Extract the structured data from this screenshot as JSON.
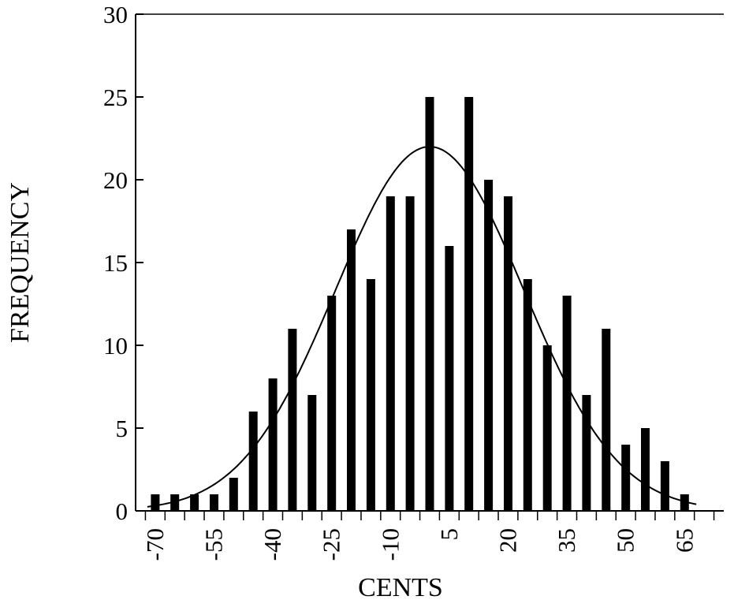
{
  "chart_data": {
    "type": "bar",
    "title": "",
    "xlabel": "CENTS",
    "ylabel": "FREQUENCY",
    "x": [
      -70,
      -65,
      -60,
      -55,
      -50,
      -45,
      -40,
      -35,
      -30,
      -25,
      -20,
      -15,
      -10,
      -5,
      0,
      5,
      10,
      15,
      20,
      25,
      30,
      35,
      40,
      45,
      50,
      55,
      60,
      65
    ],
    "values": [
      1,
      1,
      1,
      1,
      2,
      6,
      8,
      11,
      7,
      13,
      17,
      14,
      19,
      19,
      25,
      16,
      25,
      20,
      19,
      14,
      10,
      13,
      7,
      11,
      4,
      5,
      3,
      1
    ],
    "xticks": [
      -70,
      -55,
      -40,
      -25,
      -10,
      5,
      20,
      35,
      50,
      65
    ],
    "xlim": [
      -75,
      75
    ],
    "yticks": [
      0,
      5,
      10,
      15,
      20,
      25,
      30
    ],
    "ylim": [
      0,
      30
    ],
    "grid": false,
    "fit_curve": {
      "type": "normal",
      "mean": 0,
      "peak": 22,
      "sigma": 24,
      "x_range": [
        -72,
        68
      ]
    },
    "colors": {
      "bars": "#000000",
      "curve": "#000000",
      "axes": "#000000"
    }
  }
}
